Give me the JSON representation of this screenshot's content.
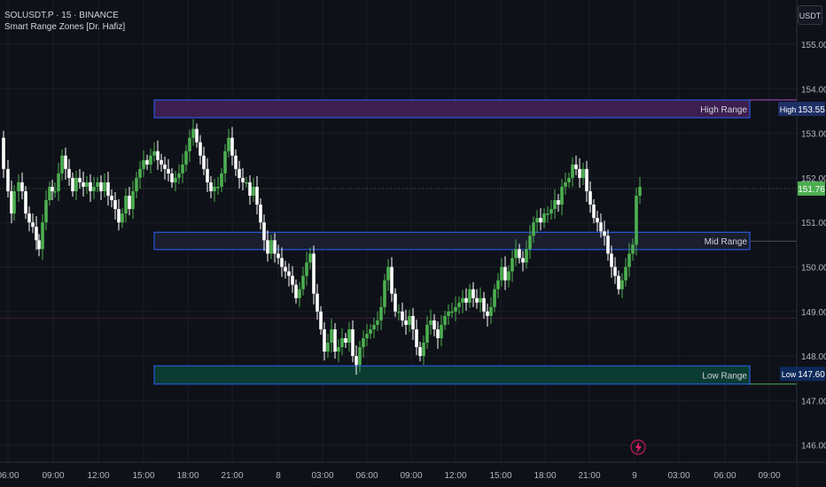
{
  "header": {
    "symbol_line": "SOLUSDT.P · 15 · BINANCE",
    "indicator_line": "Smart Range Zones [Dr. Hafiz]",
    "unit_button": "USDT"
  },
  "price_axis": {
    "ticks": [
      "155.00",
      "154.00",
      "153.00",
      "152.00",
      "151.00",
      "150.00",
      "149.00",
      "148.00",
      "147.00",
      "146.00"
    ],
    "current_price": "151.76",
    "high_label": "High",
    "high_value": "153.55",
    "low_label": "Low",
    "low_value": "147.60"
  },
  "time_axis": {
    "ticks": [
      "06:00",
      "09:00",
      "12:00",
      "15:00",
      "18:00",
      "21:00",
      "8",
      "03:00",
      "06:00",
      "09:00",
      "12:00",
      "15:00",
      "18:00",
      "21:00",
      "9",
      "03:00",
      "06:00",
      "09:00"
    ]
  },
  "zones": {
    "high_label": "High Range",
    "mid_label": "Mid Range",
    "low_label": "Low Range"
  },
  "colors": {
    "background": "#0f1118",
    "bull": "#4caf50",
    "bear": "#ffffff",
    "high_zone": "#3d1f4f",
    "mid_zone": "#1a1e2d",
    "low_zone": "#0c3b31",
    "zone_border": "#2962ff",
    "current_price_tag": "#4caf50"
  },
  "chart_data": {
    "type": "candlestick",
    "ylim": [
      145.7,
      155.7
    ],
    "y_axis_ticks": [
      155,
      154,
      153,
      152,
      151,
      150,
      149,
      148,
      147,
      146
    ],
    "zones": [
      {
        "name": "High Range",
        "top": 153.75,
        "bottom": 153.35
      },
      {
        "name": "Mid Range",
        "top": 150.78,
        "bottom": 150.39
      },
      {
        "name": "Low Range",
        "top": 147.78,
        "bottom": 147.37
      }
    ],
    "markers": {
      "high": 153.55,
      "low": 147.6,
      "last": 151.76
    },
    "close_path": [
      [
        0,
        152.9
      ],
      [
        4,
        152.2
      ],
      [
        9,
        151.7
      ],
      [
        13,
        151.2
      ],
      [
        16,
        151.7
      ],
      [
        21,
        151.9
      ],
      [
        25,
        151.7
      ],
      [
        29,
        151.2
      ],
      [
        33,
        151.0
      ],
      [
        37,
        150.9
      ],
      [
        41,
        150.6
      ],
      [
        44,
        150.4
      ],
      [
        48,
        151.0
      ],
      [
        52,
        151.5
      ],
      [
        56,
        151.8
      ],
      [
        59,
        151.7
      ],
      [
        62,
        151.7
      ],
      [
        66,
        152.1
      ],
      [
        70,
        152.5
      ],
      [
        74,
        152.2
      ],
      [
        78,
        152.0
      ],
      [
        82,
        151.7
      ],
      [
        86,
        152.0
      ],
      [
        90,
        151.9
      ],
      [
        94,
        151.8
      ],
      [
        98,
        151.9
      ],
      [
        102,
        151.7
      ],
      [
        106,
        151.8
      ],
      [
        110,
        151.9
      ],
      [
        114,
        151.7
      ],
      [
        118,
        151.9
      ],
      [
        122,
        151.6
      ],
      [
        126,
        151.5
      ],
      [
        130,
        151.3
      ],
      [
        134,
        151.0
      ],
      [
        138,
        151.2
      ],
      [
        142,
        151.6
      ],
      [
        146,
        151.3
      ],
      [
        150,
        151.7
      ],
      [
        154,
        152.0
      ],
      [
        158,
        152.2
      ],
      [
        162,
        152.4
      ],
      [
        166,
        152.3
      ],
      [
        170,
        152.5
      ],
      [
        174,
        152.6
      ],
      [
        178,
        152.4
      ],
      [
        182,
        152.3
      ],
      [
        186,
        152.2
      ],
      [
        190,
        152.1
      ],
      [
        194,
        151.9
      ],
      [
        198,
        152.0
      ],
      [
        202,
        152.1
      ],
      [
        206,
        152.3
      ],
      [
        210,
        152.6
      ],
      [
        214,
        152.9
      ],
      [
        218,
        153.1
      ],
      [
        222,
        152.8
      ],
      [
        226,
        152.5
      ],
      [
        230,
        152.2
      ],
      [
        234,
        151.9
      ],
      [
        238,
        151.7
      ],
      [
        242,
        151.8
      ],
      [
        246,
        151.8
      ],
      [
        250,
        152.1
      ],
      [
        254,
        152.6
      ],
      [
        258,
        152.9
      ],
      [
        262,
        152.5
      ],
      [
        266,
        152.2
      ],
      [
        270,
        152.0
      ],
      [
        274,
        151.9
      ],
      [
        278,
        151.9
      ],
      [
        282,
        151.6
      ],
      [
        286,
        151.8
      ],
      [
        290,
        151.4
      ],
      [
        294,
        151.0
      ],
      [
        298,
        150.6
      ],
      [
        302,
        150.3
      ],
      [
        306,
        150.6
      ],
      [
        310,
        150.3
      ],
      [
        314,
        150.2
      ],
      [
        318,
        150.0
      ],
      [
        322,
        149.9
      ],
      [
        326,
        149.8
      ],
      [
        330,
        149.6
      ],
      [
        334,
        149.3
      ],
      [
        338,
        149.5
      ],
      [
        342,
        149.8
      ],
      [
        346,
        150.1
      ],
      [
        350,
        150.3
      ],
      [
        354,
        149.4
      ],
      [
        358,
        149.0
      ],
      [
        362,
        148.6
      ],
      [
        366,
        148.1
      ],
      [
        370,
        148.3
      ],
      [
        374,
        148.6
      ],
      [
        378,
        148.1
      ],
      [
        382,
        148.2
      ],
      [
        386,
        148.4
      ],
      [
        390,
        148.3
      ],
      [
        394,
        148.6
      ],
      [
        398,
        148.0
      ],
      [
        402,
        147.8
      ],
      [
        406,
        148.2
      ],
      [
        410,
        148.4
      ],
      [
        414,
        148.5
      ],
      [
        418,
        148.6
      ],
      [
        422,
        148.7
      ],
      [
        426,
        148.8
      ],
      [
        430,
        149.1
      ],
      [
        434,
        149.7
      ],
      [
        438,
        150.0
      ],
      [
        442,
        149.4
      ],
      [
        446,
        149.0
      ],
      [
        450,
        149.0
      ],
      [
        454,
        148.8
      ],
      [
        458,
        148.7
      ],
      [
        462,
        148.9
      ],
      [
        466,
        148.6
      ],
      [
        470,
        148.2
      ],
      [
        474,
        148.0
      ],
      [
        478,
        148.3
      ],
      [
        482,
        148.7
      ],
      [
        486,
        148.8
      ],
      [
        490,
        148.6
      ],
      [
        494,
        148.4
      ],
      [
        498,
        148.7
      ],
      [
        502,
        148.9
      ],
      [
        506,
        149.0
      ],
      [
        510,
        149.0
      ],
      [
        514,
        149.1
      ],
      [
        518,
        149.2
      ],
      [
        522,
        149.3
      ],
      [
        526,
        149.2
      ],
      [
        530,
        149.5
      ],
      [
        534,
        149.3
      ],
      [
        538,
        149.2
      ],
      [
        542,
        149.3
      ],
      [
        546,
        149.0
      ],
      [
        550,
        148.9
      ],
      [
        554,
        149.1
      ],
      [
        558,
        149.5
      ],
      [
        562,
        149.7
      ],
      [
        566,
        150.0
      ],
      [
        570,
        149.7
      ],
      [
        574,
        149.9
      ],
      [
        578,
        150.2
      ],
      [
        582,
        150.4
      ],
      [
        586,
        150.2
      ],
      [
        590,
        150.1
      ],
      [
        594,
        150.4
      ],
      [
        598,
        150.7
      ],
      [
        602,
        151.0
      ],
      [
        606,
        151.1
      ],
      [
        610,
        151.0
      ],
      [
        614,
        151.2
      ],
      [
        618,
        151.2
      ],
      [
        622,
        151.3
      ],
      [
        626,
        151.5
      ],
      [
        630,
        151.4
      ],
      [
        634,
        151.8
      ],
      [
        638,
        151.9
      ],
      [
        642,
        152.0
      ],
      [
        646,
        152.3
      ],
      [
        650,
        152.2
      ],
      [
        654,
        152.0
      ],
      [
        658,
        152.2
      ],
      [
        662,
        151.7
      ],
      [
        666,
        151.4
      ],
      [
        670,
        151.1
      ],
      [
        674,
        151.0
      ],
      [
        678,
        150.8
      ],
      [
        682,
        150.7
      ],
      [
        686,
        150.3
      ],
      [
        690,
        150.0
      ],
      [
        694,
        149.8
      ],
      [
        698,
        149.5
      ],
      [
        702,
        149.7
      ],
      [
        706,
        150.0
      ],
      [
        710,
        150.3
      ],
      [
        714,
        150.5
      ],
      [
        718,
        151.6
      ],
      [
        722,
        151.8
      ]
    ]
  }
}
